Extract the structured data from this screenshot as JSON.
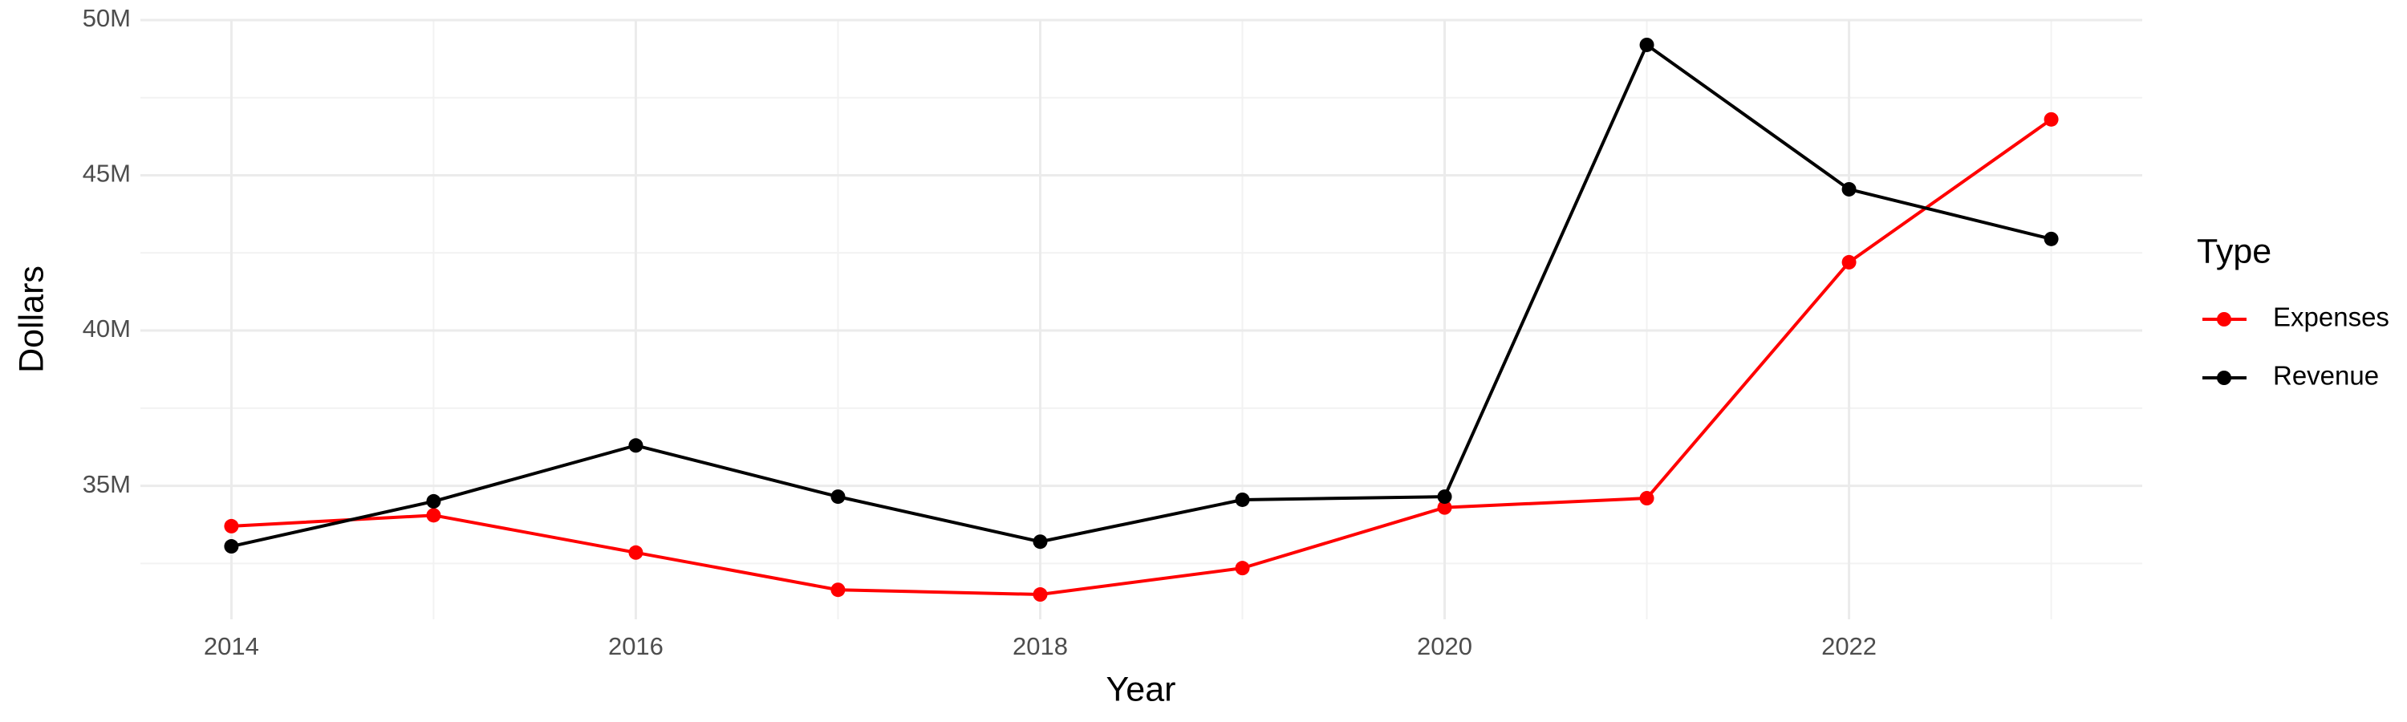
{
  "chart_data": {
    "type": "line",
    "x_label": "Year",
    "y_label": "Dollars",
    "x": [
      2014,
      2015,
      2016,
      2017,
      2018,
      2019,
      2020,
      2021,
      2022,
      2023
    ],
    "series": [
      {
        "name": "Expenses",
        "color": "#ff0000",
        "values": [
          33700000,
          34050000,
          32850000,
          31650000,
          31500000,
          32350000,
          34300000,
          34600000,
          42200000,
          46800000
        ]
      },
      {
        "name": "Revenue",
        "color": "#000000",
        "values": [
          33050000,
          34500000,
          36300000,
          34650000,
          33200000,
          34550000,
          34650000,
          49200000,
          44550000,
          42950000
        ]
      }
    ],
    "xlim": [
      2013.55,
      2023.45
    ],
    "xticks": [
      2014,
      2016,
      2018,
      2020,
      2022
    ],
    "ylim": [
      30700000,
      50000000
    ],
    "yticks": [
      {
        "value": 35000000,
        "label": "35M"
      },
      {
        "value": 40000000,
        "label": "40M"
      },
      {
        "value": 45000000,
        "label": "45M"
      },
      {
        "value": 50000000,
        "label": "50M"
      }
    ],
    "grid": true,
    "legend_title": "Type",
    "legend_position": "right"
  }
}
